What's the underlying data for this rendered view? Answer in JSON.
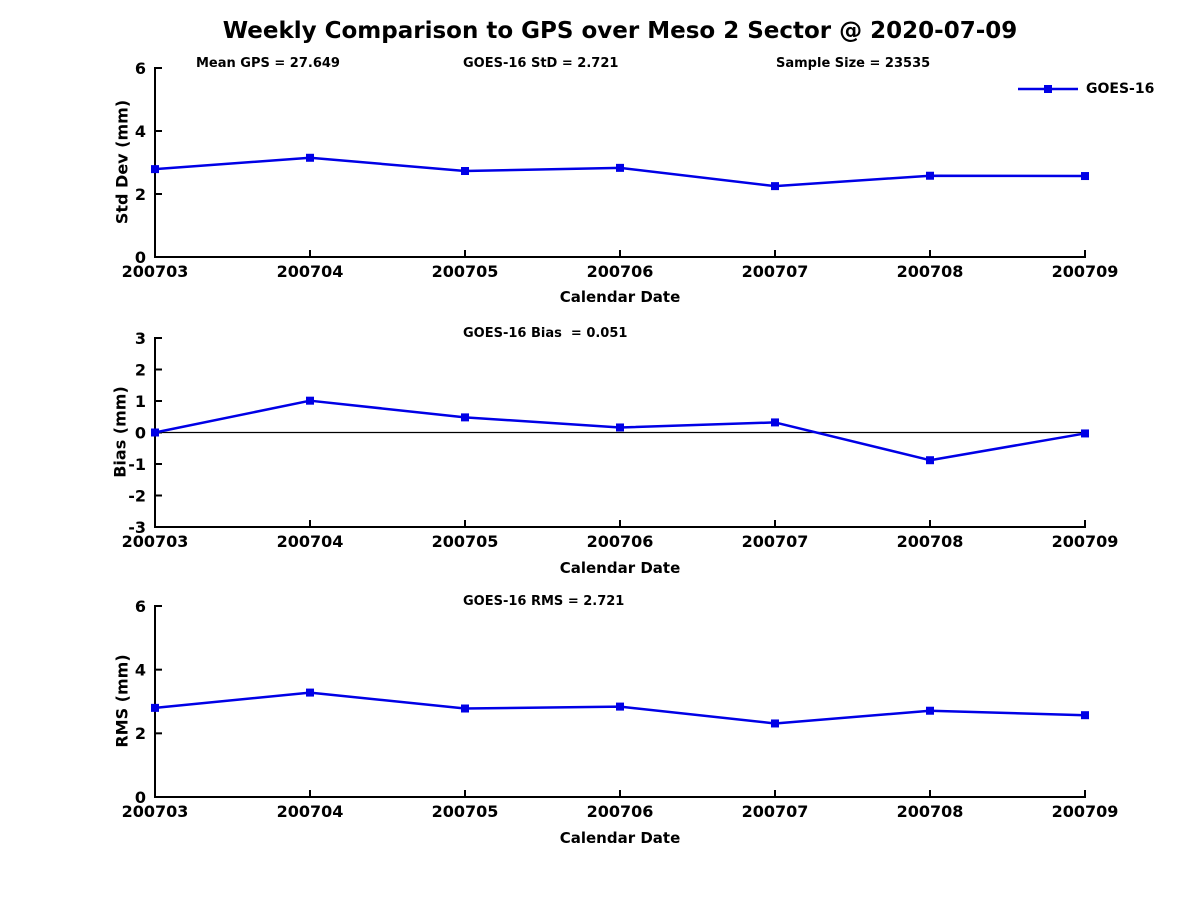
{
  "title": "Weekly Comparison to GPS over Meso 2 Sector @ 2020-07-09",
  "legend": {
    "label": "GOES-16"
  },
  "colors": {
    "line": "#0000e6",
    "axis": "#000000",
    "background": "#ffffff"
  },
  "chart_data": [
    {
      "type": "line",
      "ylabel": "Std Dev (mm)",
      "xlabel": "Calendar Date",
      "categories": [
        "200703",
        "200704",
        "200705",
        "200706",
        "200707",
        "200708",
        "200709"
      ],
      "series": [
        {
          "name": "GOES-16",
          "values": [
            2.79,
            3.15,
            2.73,
            2.83,
            2.25,
            2.58,
            2.57
          ]
        }
      ],
      "ylim": [
        0,
        6
      ],
      "yticks": [
        0,
        2,
        4,
        6
      ],
      "annotations": [
        "Mean GPS = 27.649",
        "GOES-16 StD = 2.721",
        "Sample Size = 23535"
      ],
      "zero_line": false,
      "grid": false,
      "legend_position": "top-right-outside"
    },
    {
      "type": "line",
      "ylabel": "Bias (mm)",
      "xlabel": "Calendar Date",
      "categories": [
        "200703",
        "200704",
        "200705",
        "200706",
        "200707",
        "200708",
        "200709"
      ],
      "series": [
        {
          "name": "GOES-16",
          "values": [
            0.0,
            1.01,
            0.48,
            0.16,
            0.32,
            -0.88,
            -0.03
          ]
        }
      ],
      "ylim": [
        -3,
        3
      ],
      "yticks": [
        -3,
        -2,
        -1,
        0,
        1,
        2,
        3
      ],
      "annotations": [
        "GOES-16 Bias  = 0.051"
      ],
      "zero_line": true,
      "grid": false
    },
    {
      "type": "line",
      "ylabel": "RMS (mm)",
      "xlabel": "Calendar Date",
      "categories": [
        "200703",
        "200704",
        "200705",
        "200706",
        "200707",
        "200708",
        "200709"
      ],
      "series": [
        {
          "name": "GOES-16",
          "values": [
            2.8,
            3.28,
            2.78,
            2.84,
            2.31,
            2.71,
            2.57
          ]
        }
      ],
      "ylim": [
        0,
        6
      ],
      "yticks": [
        0,
        2,
        4,
        6
      ],
      "annotations": [
        "GOES-16 RMS = 2.721"
      ],
      "zero_line": false,
      "grid": false
    }
  ]
}
